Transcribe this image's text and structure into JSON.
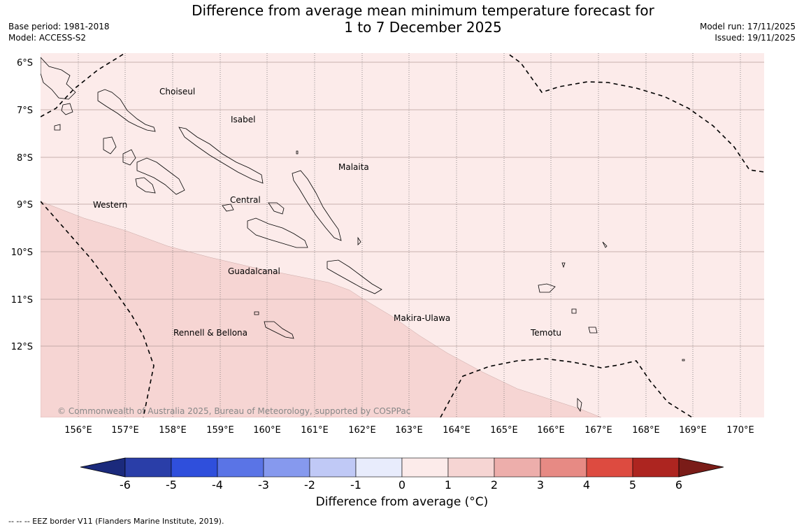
{
  "header": {
    "title_line1": "Difference from average mean minimum temperature forecast for",
    "title_line2": "1 to 7 December 2025",
    "base_period": "Base period: 1981-2018",
    "model": "Model: ACCESS-S2",
    "model_run": "Model run: 17/11/2025",
    "issued": "Issued: 19/11/2025"
  },
  "map": {
    "fill_colors": {
      "zone_0_1": "#fcebea",
      "zone_1_2": "#f6d5d3",
      "background": "#ffffff"
    },
    "lat_labels": [
      "6°S",
      "7°S",
      "8°S",
      "9°S",
      "10°S",
      "11°S",
      "12°S"
    ],
    "lon_labels": [
      "156°E",
      "157°E",
      "158°E",
      "159°E",
      "160°E",
      "161°E",
      "162°E",
      "163°E",
      "164°E",
      "165°E",
      "166°E",
      "167°E",
      "168°E",
      "169°E",
      "170°E"
    ],
    "place_labels": [
      "Choiseul",
      "Isabel",
      "Malaita",
      "Western",
      "Central",
      "Guadalcanal",
      "Makira-Ulawa",
      "Rennell & Bellona",
      "Temotu"
    ],
    "copyright": "© Commonwealth of Australia 2025, Bureau of Meteorology, supported by COSPPac"
  },
  "colorbar": {
    "title": "Difference from average (°C)",
    "ticks": [
      "-6",
      "-5",
      "-4",
      "-3",
      "-2",
      "-1",
      "0",
      "1",
      "2",
      "3",
      "4",
      "5",
      "6"
    ],
    "colors": [
      "#2a3ea8",
      "#2f4fdc",
      "#5a74e6",
      "#8699ee",
      "#c0c9f6",
      "#e8ecfc",
      "#fcebea",
      "#f6d5d3",
      "#edaeab",
      "#e78a84",
      "#dd4b40",
      "#ad2520"
    ],
    "under_color": "#1b2a7c",
    "over_color": "#7a1c18"
  },
  "footer": {
    "eez_note": "--  --  -- EEZ border V11 (Flanders Marine Institute, 2019)."
  }
}
